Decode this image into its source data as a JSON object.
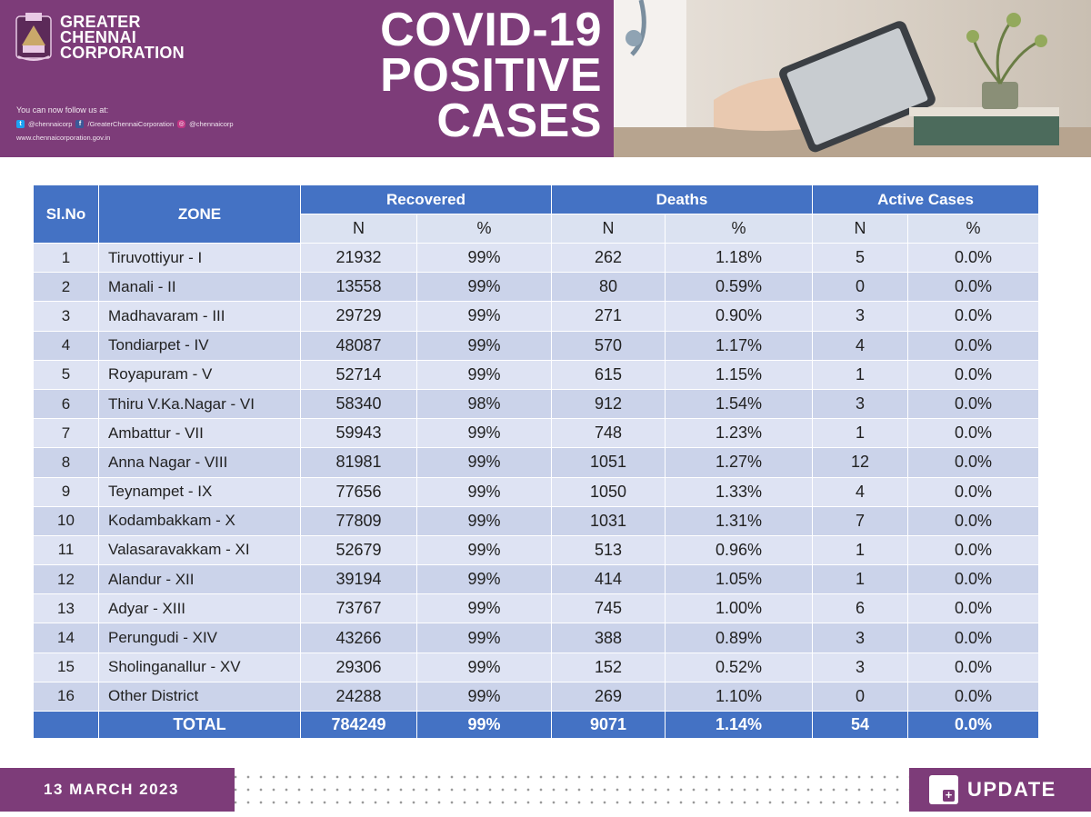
{
  "header": {
    "org_line1": "GREATER",
    "org_line2": "CHENNAI",
    "org_line3": "CORPORATION",
    "follow_text": "You can now follow us at:",
    "twitter": "@chennaicorp",
    "facebook": "/GreaterChennaiCorporation",
    "instagram": "@chennaicorp",
    "website": "www.chennaicorporation.gov.in",
    "title_line1": "COVID-19",
    "title_line2": "POSITIVE",
    "title_line3": "CASES",
    "colors": {
      "brand": "#7d3c79",
      "table_header": "#4472c4"
    }
  },
  "table": {
    "col_slno": "Sl.No",
    "col_zone": "ZONE",
    "group_recovered": "Recovered",
    "group_deaths": "Deaths",
    "group_active": "Active Cases",
    "sub_n": "N",
    "sub_pct": "%",
    "rows": [
      {
        "sl": "1",
        "zone": "Tiruvottiyur - I",
        "rec_n": "21932",
        "rec_p": "99%",
        "d_n": "262",
        "d_p": "1.18%",
        "a_n": "5",
        "a_p": "0.0%"
      },
      {
        "sl": "2",
        "zone": "Manali - II",
        "rec_n": "13558",
        "rec_p": "99%",
        "d_n": "80",
        "d_p": "0.59%",
        "a_n": "0",
        "a_p": "0.0%"
      },
      {
        "sl": "3",
        "zone": "Madhavaram - III",
        "rec_n": "29729",
        "rec_p": "99%",
        "d_n": "271",
        "d_p": "0.90%",
        "a_n": "3",
        "a_p": "0.0%"
      },
      {
        "sl": "4",
        "zone": "Tondiarpet - IV",
        "rec_n": "48087",
        "rec_p": "99%",
        "d_n": "570",
        "d_p": "1.17%",
        "a_n": "4",
        "a_p": "0.0%"
      },
      {
        "sl": "5",
        "zone": "Royapuram - V",
        "rec_n": "52714",
        "rec_p": "99%",
        "d_n": "615",
        "d_p": "1.15%",
        "a_n": "1",
        "a_p": "0.0%"
      },
      {
        "sl": "6",
        "zone": "Thiru V.Ka.Nagar - VI",
        "rec_n": "58340",
        "rec_p": "98%",
        "d_n": "912",
        "d_p": "1.54%",
        "a_n": "3",
        "a_p": "0.0%"
      },
      {
        "sl": "7",
        "zone": "Ambattur - VII",
        "rec_n": "59943",
        "rec_p": "99%",
        "d_n": "748",
        "d_p": "1.23%",
        "a_n": "1",
        "a_p": "0.0%"
      },
      {
        "sl": "8",
        "zone": "Anna Nagar - VIII",
        "rec_n": "81981",
        "rec_p": "99%",
        "d_n": "1051",
        "d_p": "1.27%",
        "a_n": "12",
        "a_p": "0.0%"
      },
      {
        "sl": "9",
        "zone": "Teynampet - IX",
        "rec_n": "77656",
        "rec_p": "99%",
        "d_n": "1050",
        "d_p": "1.33%",
        "a_n": "4",
        "a_p": "0.0%"
      },
      {
        "sl": "10",
        "zone": "Kodambakkam - X",
        "rec_n": "77809",
        "rec_p": "99%",
        "d_n": "1031",
        "d_p": "1.31%",
        "a_n": "7",
        "a_p": "0.0%"
      },
      {
        "sl": "11",
        "zone": "Valasaravakkam - XI",
        "rec_n": "52679",
        "rec_p": "99%",
        "d_n": "513",
        "d_p": "0.96%",
        "a_n": "1",
        "a_p": "0.0%"
      },
      {
        "sl": "12",
        "zone": "Alandur - XII",
        "rec_n": "39194",
        "rec_p": "99%",
        "d_n": "414",
        "d_p": "1.05%",
        "a_n": "1",
        "a_p": "0.0%"
      },
      {
        "sl": "13",
        "zone": "Adyar - XIII",
        "rec_n": "73767",
        "rec_p": "99%",
        "d_n": "745",
        "d_p": "1.00%",
        "a_n": "6",
        "a_p": "0.0%"
      },
      {
        "sl": "14",
        "zone": "Perungudi - XIV",
        "rec_n": "43266",
        "rec_p": "99%",
        "d_n": "388",
        "d_p": "0.89%",
        "a_n": "3",
        "a_p": "0.0%"
      },
      {
        "sl": "15",
        "zone": "Sholinganallur - XV",
        "rec_n": "29306",
        "rec_p": "99%",
        "d_n": "152",
        "d_p": "0.52%",
        "a_n": "3",
        "a_p": "0.0%"
      },
      {
        "sl": "16",
        "zone": "Other District",
        "rec_n": "24288",
        "rec_p": "99%",
        "d_n": "269",
        "d_p": "1.10%",
        "a_n": "0",
        "a_p": "0.0%"
      }
    ],
    "total": {
      "label": "TOTAL",
      "rec_n": "784249",
      "rec_p": "99%",
      "d_n": "9071",
      "d_p": "1.14%",
      "a_n": "54",
      "a_p": "0.0%"
    }
  },
  "footer": {
    "date": "13 MARCH 2023",
    "update_label": "UPDATE"
  }
}
